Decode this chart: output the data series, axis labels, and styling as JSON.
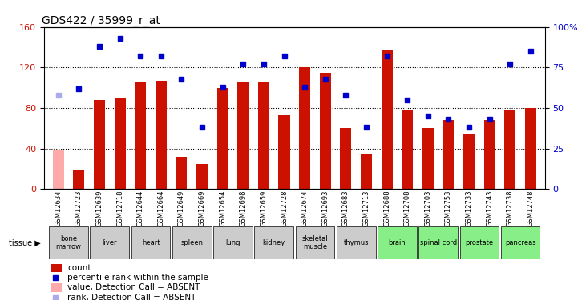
{
  "title": "GDS422 / 35999_r_at",
  "samples": [
    "GSM12634",
    "GSM12723",
    "GSM12639",
    "GSM12718",
    "GSM12644",
    "GSM12664",
    "GSM12649",
    "GSM12669",
    "GSM12654",
    "GSM12698",
    "GSM12659",
    "GSM12728",
    "GSM12674",
    "GSM12693",
    "GSM12683",
    "GSM12713",
    "GSM12688",
    "GSM12708",
    "GSM12703",
    "GSM12753",
    "GSM12733",
    "GSM12743",
    "GSM12738",
    "GSM12748"
  ],
  "bar_values": [
    38,
    18,
    88,
    90,
    105,
    107,
    32,
    25,
    100,
    105,
    105,
    73,
    120,
    115,
    60,
    35,
    138,
    78,
    60,
    68,
    55,
    68,
    78,
    80
  ],
  "blue_dot_values": [
    58,
    62,
    88,
    93,
    82,
    82,
    68,
    38,
    63,
    77,
    77,
    82,
    63,
    68,
    58,
    38,
    82,
    55,
    45,
    43,
    38,
    43,
    77,
    85
  ],
  "absent_bar_indices": [
    0
  ],
  "absent_dot_indices": [
    0
  ],
  "bar_color_normal": "#cc1100",
  "bar_color_absent": "#ffaaaa",
  "dot_color_normal": "#0000cc",
  "dot_color_absent": "#aaaaee",
  "ylim_left": [
    0,
    160
  ],
  "ylim_right": [
    0,
    100
  ],
  "yticks_left": [
    0,
    40,
    80,
    120,
    160
  ],
  "yticks_right": [
    0,
    25,
    50,
    75,
    100
  ],
  "tissue_groups": [
    {
      "name": "bone\nmarrow",
      "indices": [
        0,
        1
      ],
      "color": "#cccccc"
    },
    {
      "name": "liver",
      "indices": [
        2,
        3
      ],
      "color": "#cccccc"
    },
    {
      "name": "heart",
      "indices": [
        4,
        5
      ],
      "color": "#cccccc"
    },
    {
      "name": "spleen",
      "indices": [
        6,
        7
      ],
      "color": "#cccccc"
    },
    {
      "name": "lung",
      "indices": [
        8,
        9
      ],
      "color": "#cccccc"
    },
    {
      "name": "kidney",
      "indices": [
        10,
        11
      ],
      "color": "#cccccc"
    },
    {
      "name": "skeletal\nmuscle",
      "indices": [
        12,
        13
      ],
      "color": "#cccccc"
    },
    {
      "name": "thymus",
      "indices": [
        14,
        15
      ],
      "color": "#cccccc"
    },
    {
      "name": "brain",
      "indices": [
        16,
        17
      ],
      "color": "#88ee88"
    },
    {
      "name": "spinal cord",
      "indices": [
        18,
        19
      ],
      "color": "#88ee88"
    },
    {
      "name": "prostate",
      "indices": [
        20,
        21
      ],
      "color": "#88ee88"
    },
    {
      "name": "pancreas",
      "indices": [
        22,
        23
      ],
      "color": "#88ee88"
    }
  ],
  "bar_width": 0.55,
  "legend_items": [
    {
      "color": "#cc1100",
      "type": "bar",
      "label": "count"
    },
    {
      "color": "#0000cc",
      "type": "dot",
      "label": "percentile rank within the sample"
    },
    {
      "color": "#ffaaaa",
      "type": "bar",
      "label": "value, Detection Call = ABSENT"
    },
    {
      "color": "#aaaaee",
      "type": "dot",
      "label": "rank, Detection Call = ABSENT"
    }
  ]
}
